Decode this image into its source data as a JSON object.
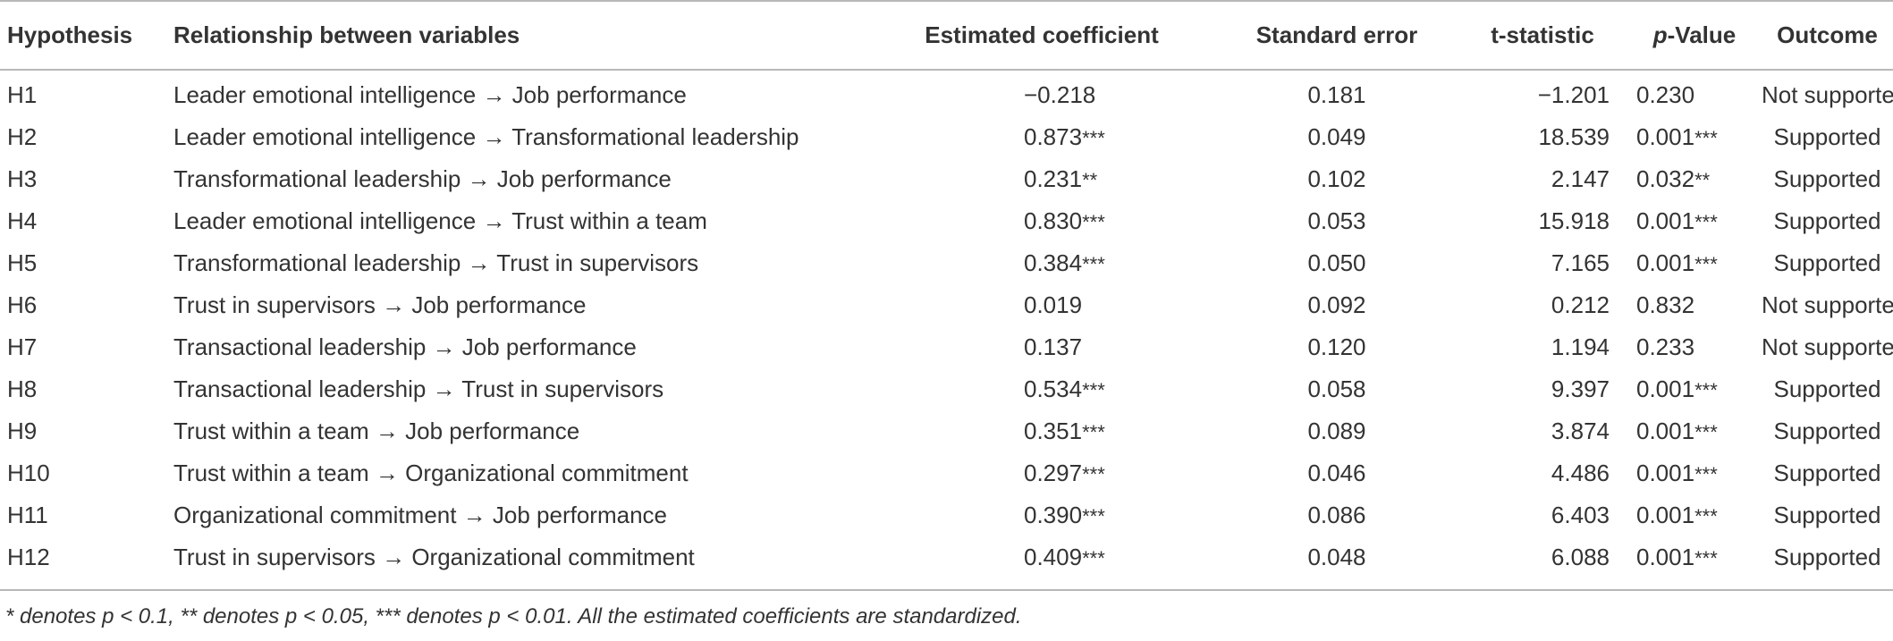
{
  "table": {
    "headers": {
      "hypothesis": "Hypothesis",
      "relationship": "Relationship between variables",
      "estimate": "Estimated coefficient",
      "std_error": "Standard error",
      "t_stat": "t-statistic",
      "p_value_italic": "p",
      "p_value_rest": "-Value",
      "outcome": "Outcome"
    },
    "rows": [
      {
        "hypothesis": "H1",
        "relationship": "Leader emotional intelligence → Job performance",
        "estimate": "−0.218",
        "estimate_stars": "",
        "std_error": "0.181",
        "t_stat": "−1.201",
        "p_value": "0.230",
        "p_stars": "",
        "outcome": "Not supported"
      },
      {
        "hypothesis": "H2",
        "relationship": "Leader emotional intelligence → Transformational leadership",
        "estimate": "0.873",
        "estimate_stars": "***",
        "std_error": "0.049",
        "t_stat": "18.539",
        "p_value": "0.001",
        "p_stars": "***",
        "outcome": "Supported"
      },
      {
        "hypothesis": "H3",
        "relationship": "Transformational leadership → Job performance",
        "estimate": "0.231",
        "estimate_stars": "**",
        "std_error": "0.102",
        "t_stat": "2.147",
        "p_value": "0.032",
        "p_stars": "**",
        "outcome": "Supported"
      },
      {
        "hypothesis": "H4",
        "relationship": "Leader emotional intelligence → Trust within a team",
        "estimate": "0.830",
        "estimate_stars": "***",
        "std_error": "0.053",
        "t_stat": "15.918",
        "p_value": "0.001",
        "p_stars": "***",
        "outcome": "Supported"
      },
      {
        "hypothesis": "H5",
        "relationship": "Transformational leadership → Trust in supervisors",
        "estimate": "0.384",
        "estimate_stars": "***",
        "std_error": "0.050",
        "t_stat": "7.165",
        "p_value": "0.001",
        "p_stars": "***",
        "outcome": "Supported"
      },
      {
        "hypothesis": "H6",
        "relationship": "Trust in supervisors → Job performance",
        "estimate": "0.019",
        "estimate_stars": "",
        "std_error": "0.092",
        "t_stat": "0.212",
        "p_value": "0.832",
        "p_stars": "",
        "outcome": "Not supported"
      },
      {
        "hypothesis": "H7",
        "relationship": "Transactional leadership → Job performance",
        "estimate": "0.137",
        "estimate_stars": "",
        "std_error": "0.120",
        "t_stat": "1.194",
        "p_value": "0.233",
        "p_stars": "",
        "outcome": "Not supported"
      },
      {
        "hypothesis": "H8",
        "relationship": "Transactional leadership → Trust in supervisors",
        "estimate": "0.534",
        "estimate_stars": "***",
        "std_error": "0.058",
        "t_stat": "9.397",
        "p_value": "0.001",
        "p_stars": "***",
        "outcome": "Supported"
      },
      {
        "hypothesis": "H9",
        "relationship": "Trust within a team → Job performance",
        "estimate": "0.351",
        "estimate_stars": "***",
        "std_error": "0.089",
        "t_stat": "3.874",
        "p_value": "0.001",
        "p_stars": "***",
        "outcome": "Supported"
      },
      {
        "hypothesis": "H10",
        "relationship": "Trust within a team → Organizational commitment",
        "estimate": "0.297",
        "estimate_stars": "***",
        "std_error": "0.046",
        "t_stat": "4.486",
        "p_value": "0.001",
        "p_stars": "***",
        "outcome": "Supported"
      },
      {
        "hypothesis": "H11",
        "relationship": "Organizational commitment → Job performance",
        "estimate": "0.390",
        "estimate_stars": "***",
        "std_error": "0.086",
        "t_stat": "6.403",
        "p_value": "0.001",
        "p_stars": "***",
        "outcome": "Supported"
      },
      {
        "hypothesis": "H12",
        "relationship": "Trust in supervisors → Organizational commitment",
        "estimate": "0.409",
        "estimate_stars": "***",
        "std_error": "0.048",
        "t_stat": "6.088",
        "p_value": "0.001",
        "p_stars": "***",
        "outcome": "Supported"
      }
    ]
  },
  "footnote": "* denotes p < 0.1, ** denotes p < 0.05, *** denotes p < 0.01. All the estimated coefficients are standardized.",
  "colors": {
    "text": "#333333",
    "rule": "#b8b8b8",
    "background": "#ffffff"
  }
}
